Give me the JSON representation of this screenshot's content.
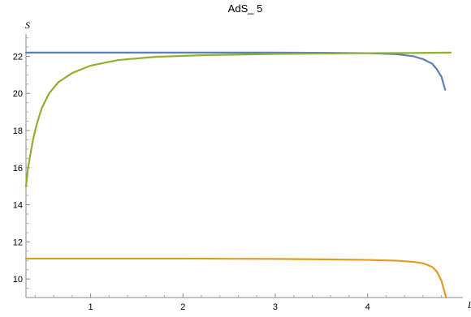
{
  "chart_data": {
    "type": "line",
    "title": "AdS_ 5",
    "xlabel": "L",
    "ylabel": "S",
    "xlim": [
      0.3,
      4.9
    ],
    "ylim": [
      9.0,
      23.2
    ],
    "grid": false,
    "x_ticks": [
      1,
      2,
      3,
      4
    ],
    "y_ticks": [
      10,
      12,
      14,
      16,
      18,
      20,
      22
    ],
    "series": [
      {
        "color": "#5e81b5",
        "x": [
          0.3,
          0.5,
          1.0,
          1.5,
          2.0,
          2.5,
          3.0,
          3.5,
          4.0,
          4.3,
          4.5,
          4.6,
          4.7,
          4.75,
          4.8,
          4.84
        ],
        "y": [
          22.2,
          22.2,
          22.2,
          22.2,
          22.2,
          22.2,
          22.2,
          22.19,
          22.17,
          22.12,
          22.0,
          21.85,
          21.6,
          21.3,
          20.9,
          20.2
        ]
      },
      {
        "color": "#e19c24",
        "x": [
          0.3,
          0.5,
          1.0,
          1.5,
          2.0,
          2.5,
          3.0,
          3.5,
          4.0,
          4.3,
          4.5,
          4.6,
          4.7,
          4.75,
          4.8,
          4.85
        ],
        "y": [
          11.1,
          11.1,
          11.1,
          11.1,
          11.1,
          11.09,
          11.08,
          11.06,
          11.03,
          10.99,
          10.92,
          10.85,
          10.65,
          10.4,
          9.9,
          9.0
        ]
      },
      {
        "color": "#8fb032",
        "x": [
          0.3,
          0.32,
          0.35,
          0.38,
          0.42,
          0.47,
          0.55,
          0.65,
          0.8,
          1.0,
          1.3,
          1.7,
          2.2,
          3.0,
          3.5,
          4.0,
          4.5,
          4.9
        ],
        "y": [
          15.0,
          15.9,
          16.8,
          17.6,
          18.4,
          19.2,
          20.0,
          20.6,
          21.1,
          21.5,
          21.8,
          21.97,
          22.06,
          22.13,
          22.15,
          22.17,
          22.18,
          22.2
        ]
      }
    ]
  }
}
